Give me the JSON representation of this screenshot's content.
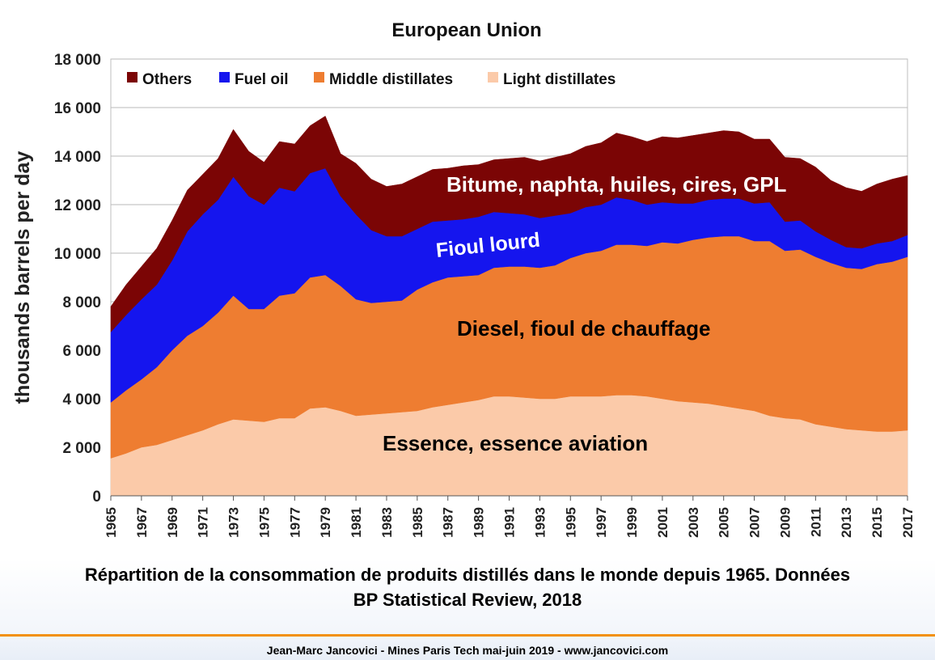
{
  "chart_data": {
    "type": "area",
    "stacked": true,
    "title": "European Union",
    "ylabel": "thousands barrels per day",
    "xlabel": "",
    "ylim": [
      0,
      18000
    ],
    "yticks": [
      0,
      2000,
      4000,
      6000,
      8000,
      10000,
      12000,
      14000,
      16000,
      18000
    ],
    "ytick_labels": [
      "0",
      "2 000",
      "4 000",
      "6 000",
      "8 000",
      "10 000",
      "12 000",
      "14 000",
      "16 000",
      "18 000"
    ],
    "grid": true,
    "legend_position": "top-left",
    "x": [
      1965,
      1966,
      1967,
      1968,
      1969,
      1970,
      1971,
      1972,
      1973,
      1974,
      1975,
      1976,
      1977,
      1978,
      1979,
      1980,
      1981,
      1982,
      1983,
      1984,
      1985,
      1986,
      1987,
      1988,
      1989,
      1990,
      1991,
      1992,
      1993,
      1994,
      1995,
      1996,
      1997,
      1998,
      1999,
      2000,
      2001,
      2002,
      2003,
      2004,
      2005,
      2006,
      2007,
      2008,
      2009,
      2010,
      2011,
      2012,
      2013,
      2014,
      2015,
      2016,
      2017
    ],
    "xticks": [
      1965,
      1967,
      1969,
      1971,
      1973,
      1975,
      1977,
      1979,
      1981,
      1983,
      1985,
      1987,
      1989,
      1991,
      1993,
      1995,
      1997,
      1999,
      2001,
      2003,
      2005,
      2007,
      2009,
      2011,
      2013,
      2015,
      2017
    ],
    "series": [
      {
        "name": "Light distillates",
        "color": "#fbcaa9",
        "values": [
          1550,
          1750,
          2000,
          2100,
          2300,
          2500,
          2700,
          2950,
          3150,
          3100,
          3050,
          3200,
          3200,
          3600,
          3650,
          3500,
          3300,
          3350,
          3400,
          3450,
          3500,
          3650,
          3750,
          3850,
          3950,
          4100,
          4100,
          4050,
          4000,
          4000,
          4100,
          4100,
          4100,
          4150,
          4150,
          4100,
          4000,
          3900,
          3850,
          3800,
          3700,
          3600,
          3500,
          3300,
          3200,
          3150,
          2950,
          2850,
          2750,
          2700,
          2650,
          2650,
          2700
        ]
      },
      {
        "name": "Middle distillates",
        "color": "#ee7d31",
        "values": [
          2300,
          2600,
          2800,
          3200,
          3700,
          4100,
          4300,
          4600,
          5100,
          4600,
          4650,
          5050,
          5150,
          5400,
          5450,
          5150,
          4800,
          4600,
          4600,
          4600,
          5000,
          5150,
          5250,
          5200,
          5150,
          5300,
          5350,
          5400,
          5400,
          5500,
          5700,
          5900,
          6000,
          6200,
          6200,
          6200,
          6450,
          6500,
          6700,
          6850,
          7000,
          7100,
          7000,
          7200,
          6900,
          7000,
          6900,
          6750,
          6650,
          6650,
          6900,
          7000,
          7150
        ]
      },
      {
        "name": "Fuel oil",
        "color": "#1515ee",
        "values": [
          2900,
          3100,
          3300,
          3400,
          3700,
          4300,
          4600,
          4650,
          4900,
          4650,
          4300,
          4450,
          4200,
          4300,
          4400,
          3700,
          3500,
          3000,
          2700,
          2650,
          2500,
          2500,
          2350,
          2350,
          2400,
          2300,
          2200,
          2150,
          2050,
          2050,
          1850,
          1900,
          1900,
          1950,
          1850,
          1700,
          1650,
          1650,
          1500,
          1550,
          1550,
          1550,
          1550,
          1600,
          1200,
          1200,
          1050,
          950,
          850,
          850,
          850,
          850,
          900
        ]
      },
      {
        "name": "Others",
        "color": "#7b0505",
        "values": [
          1050,
          1250,
          1350,
          1500,
          1650,
          1700,
          1650,
          1700,
          1950,
          1850,
          1750,
          1900,
          1950,
          1950,
          2150,
          1750,
          2100,
          2100,
          2050,
          2150,
          2150,
          2150,
          2150,
          2200,
          2150,
          2150,
          2250,
          2350,
          2350,
          2400,
          2450,
          2500,
          2550,
          2650,
          2600,
          2600,
          2700,
          2700,
          2800,
          2750,
          2800,
          2750,
          2650,
          2600,
          2650,
          2550,
          2650,
          2450,
          2450,
          2350,
          2450,
          2550,
          2450
        ]
      }
    ],
    "annotations": [
      {
        "text": "Bitume, naphta, huiles, cires, GPL",
        "color": "#ffffff"
      },
      {
        "text": "Fioul lourd",
        "color": "#ffffff"
      },
      {
        "text": "Diesel, fioul de chauffage",
        "color": "#000000"
      },
      {
        "text": "Essence, essence aviation",
        "color": "#000000"
      }
    ]
  },
  "caption": {
    "line1": "Répartition de la consommation de produits distillés dans le monde depuis 1965. Données",
    "line2": "BP Statistical Review, 2018"
  },
  "footer": "Jean-Marc Jancovici - Mines Paris Tech mai-juin 2019 - www.jancovici.com",
  "colors": {
    "accent_rule": "#f29111"
  }
}
